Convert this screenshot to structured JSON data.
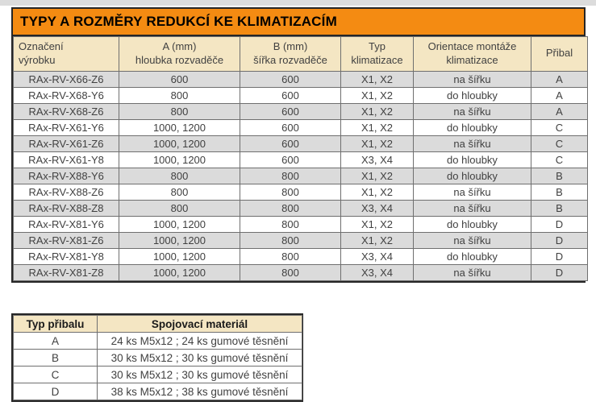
{
  "page": {
    "title": "TYPY A ROZMĚRY REDUKCÍ KE KLIMATIZACÍM"
  },
  "colors": {
    "title_bg": "#F48B12",
    "header_bg": "#F4E6C3",
    "stripe_bg": "#DBDBDB",
    "border_dark": "#262626",
    "border_inner": "#6F6F6F",
    "text": "#414141"
  },
  "main_table": {
    "columns": [
      {
        "line1": "Označení",
        "line2": "výrobku"
      },
      {
        "line1": "A (mm)",
        "line2": "hloubka rozvaděče"
      },
      {
        "line1": "B (mm)",
        "line2": "šířka rozvaděče"
      },
      {
        "line1": "Typ",
        "line2": "klimatizace"
      },
      {
        "line1": "Orientace montáže",
        "line2": "klimatizace"
      },
      {
        "line1": "Přibal",
        "line2": ""
      }
    ],
    "rows": [
      [
        "RAx-RV-X66-Z6",
        "600",
        "600",
        "X1, X2",
        "na šířku",
        "A"
      ],
      [
        "RAx-RV-X68-Y6",
        "800",
        "600",
        "X1, X2",
        "do hloubky",
        "A"
      ],
      [
        "RAx-RV-X68-Z6",
        "800",
        "600",
        "X1, X2",
        "na šířku",
        "A"
      ],
      [
        "RAx-RV-X61-Y6",
        "1000, 1200",
        "600",
        "X1, X2",
        "do hloubky",
        "C"
      ],
      [
        "RAx-RV-X61-Z6",
        "1000, 1200",
        "600",
        "X1, X2",
        "na šířku",
        "C"
      ],
      [
        "RAx-RV-X61-Y8",
        "1000, 1200",
        "600",
        "X3, X4",
        "do hloubky",
        "C"
      ],
      [
        "RAx-RV-X88-Y6",
        "800",
        "800",
        "X1, X2",
        "do hloubky",
        "B"
      ],
      [
        "RAx-RV-X88-Z6",
        "800",
        "800",
        "X1, X2",
        "na šířku",
        "B"
      ],
      [
        "RAx-RV-X88-Z8",
        "800",
        "800",
        "X3, X4",
        "na šířku",
        "B"
      ],
      [
        "RAx-RV-X81-Y6",
        "1000, 1200",
        "800",
        "X1, X2",
        "do hloubky",
        "D"
      ],
      [
        "RAx-RV-X81-Z6",
        "1000, 1200",
        "800",
        "X1, X2",
        "na šířku",
        "D"
      ],
      [
        "RAx-RV-X81-Y8",
        "1000, 1200",
        "800",
        "X3, X4",
        "do hloubky",
        "D"
      ],
      [
        "RAx-RV-X81-Z8",
        "1000, 1200",
        "800",
        "X3, X4",
        "na šířku",
        "D"
      ]
    ]
  },
  "accessories_table": {
    "columns": [
      "Typ přibalu",
      "Spojovací materiál"
    ],
    "rows": [
      [
        "A",
        "24 ks M5x12 ; 24 ks gumové těsnění"
      ],
      [
        "B",
        "30 ks M5x12 ; 30 ks gumové těsnění"
      ],
      [
        "C",
        "30 ks M5x12 ; 30 ks gumové těsnění"
      ],
      [
        "D",
        "38 ks M5x12 ; 38 ks gumové těsnění"
      ]
    ]
  }
}
